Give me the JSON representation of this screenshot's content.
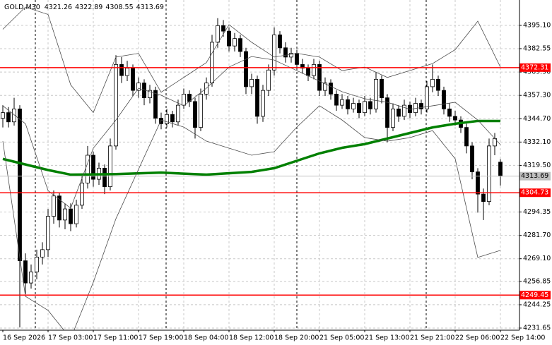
{
  "chart_data": {
    "type": "candlestick",
    "symbol": "GOLD,M30",
    "ylim": [
      4230.51,
      4408.82
    ],
    "yticks": [
      {
        "value": 4395.1,
        "label": "4395.10"
      },
      {
        "value": 4382.55,
        "label": "4382.55"
      },
      {
        "value": 4369.9,
        "label": "4369.90"
      },
      {
        "value": 4357.3,
        "label": "4357.30"
      },
      {
        "value": 4344.7,
        "label": "4344.70"
      },
      {
        "value": 4332.1,
        "label": "4332.10"
      },
      {
        "value": 4319.5,
        "label": "4319.50"
      },
      {
        "value": 4294.35,
        "label": "4294.35"
      },
      {
        "value": 4281.7,
        "label": "4281.70"
      },
      {
        "value": 4269.1,
        "label": "4269.10"
      },
      {
        "value": 4256.85,
        "label": "4256.85"
      },
      {
        "value": 4244.25,
        "label": "4244.25"
      },
      {
        "value": 4231.65,
        "label": "4231.65"
      }
    ],
    "grid": true,
    "bull_color": "#ffffff",
    "bear_color": "#000000",
    "categories": [
      "16 Sep 2026",
      null,
      null,
      null,
      null,
      null,
      null,
      null,
      "17 Sep 03:00",
      null,
      null,
      null,
      null,
      null,
      null,
      null,
      "17 Sep 11:00",
      null,
      null,
      null,
      null,
      null,
      null,
      null,
      "17 Sep 19:00",
      null,
      null,
      null,
      null,
      null,
      null,
      null,
      "18 Sep 04:00",
      null,
      null,
      null,
      null,
      null,
      null,
      null,
      "18 Sep 12:00",
      null,
      null,
      null,
      null,
      null,
      null,
      null,
      "18 Sep 20:00",
      null,
      null,
      null,
      null,
      null,
      null,
      null,
      "21 Sep 05:00",
      null,
      null,
      null,
      null,
      null,
      null,
      null,
      "21 Sep 13:00",
      null,
      null,
      null,
      null,
      null,
      null,
      null,
      "21 Sep 21:00",
      null,
      null,
      null,
      null,
      null,
      null,
      null,
      "22 Sep 06:00",
      null,
      null,
      null,
      null,
      null,
      null,
      null,
      "22 Sep 14:00"
    ],
    "candles": [
      [
        4345,
        4352,
        4340,
        4348
      ],
      [
        4348,
        4351,
        4340,
        4343
      ],
      [
        4343,
        4356,
        4341,
        4350
      ],
      [
        4350,
        4352,
        4232,
        4268
      ],
      [
        4268,
        4272,
        4250,
        4256
      ],
      [
        4256,
        4266,
        4253,
        4262
      ],
      [
        4262,
        4274,
        4258,
        4270
      ],
      [
        4270,
        4278,
        4266,
        4274
      ],
      [
        4274,
        4296,
        4270,
        4292
      ],
      [
        4292,
        4306,
        4288,
        4303
      ],
      [
        4303,
        4305,
        4286,
        4290
      ],
      [
        4290,
        4299,
        4285,
        4296
      ],
      [
        4296,
        4299,
        4284,
        4288
      ],
      [
        4288,
        4301,
        4286,
        4298
      ],
      [
        4298,
        4314,
        4296,
        4310
      ],
      [
        4310,
        4330,
        4307,
        4325
      ],
      [
        4325,
        4327,
        4308,
        4312
      ],
      [
        4312,
        4321,
        4309,
        4318
      ],
      [
        4318,
        4320,
        4304,
        4308
      ],
      [
        4308,
        4334,
        4306,
        4330
      ],
      [
        4330,
        4379,
        4328,
        4374
      ],
      [
        4374,
        4378,
        4364,
        4368
      ],
      [
        4368,
        4376,
        4365,
        4372
      ],
      [
        4372,
        4374,
        4357,
        4360
      ],
      [
        4360,
        4367,
        4356,
        4364
      ],
      [
        4364,
        4366,
        4352,
        4356
      ],
      [
        4356,
        4363,
        4353,
        4360
      ],
      [
        4360,
        4362,
        4342,
        4345
      ],
      [
        4345,
        4348,
        4339,
        4342
      ],
      [
        4342,
        4350,
        4340,
        4347
      ],
      [
        4347,
        4349,
        4340,
        4343
      ],
      [
        4343,
        4355,
        4341,
        4352
      ],
      [
        4352,
        4361,
        4350,
        4358
      ],
      [
        4358,
        4360,
        4351,
        4354
      ],
      [
        4354,
        4356,
        4334,
        4340
      ],
      [
        4340,
        4361,
        4338,
        4358
      ],
      [
        4358,
        4367,
        4355,
        4364
      ],
      [
        4364,
        4390,
        4362,
        4386
      ],
      [
        4386,
        4399,
        4383,
        4395
      ],
      [
        4395,
        4398,
        4389,
        4392
      ],
      [
        4392,
        4394,
        4381,
        4384
      ],
      [
        4384,
        4391,
        4381,
        4388
      ],
      [
        4388,
        4390,
        4378,
        4381
      ],
      [
        4381,
        4383,
        4358,
        4362
      ],
      [
        4362,
        4369,
        4358,
        4366
      ],
      [
        4366,
        4368,
        4342,
        4346
      ],
      [
        4346,
        4363,
        4343,
        4360
      ],
      [
        4360,
        4374,
        4357,
        4371
      ],
      [
        4371,
        4394,
        4368,
        4390
      ],
      [
        4390,
        4392,
        4380,
        4383
      ],
      [
        4383,
        4386,
        4375,
        4378
      ],
      [
        4378,
        4383,
        4375,
        4380
      ],
      [
        4380,
        4382,
        4371,
        4374
      ],
      [
        4374,
        4377,
        4369,
        4372
      ],
      [
        4372,
        4374,
        4365,
        4368
      ],
      [
        4368,
        4377,
        4366,
        4374
      ],
      [
        4374,
        4376,
        4357,
        4360
      ],
      [
        4360,
        4367,
        4357,
        4364
      ],
      [
        4364,
        4366,
        4355,
        4358
      ],
      [
        4358,
        4360,
        4349,
        4352
      ],
      [
        4352,
        4358,
        4350,
        4355
      ],
      [
        4355,
        4357,
        4347,
        4350
      ],
      [
        4350,
        4356,
        4348,
        4353
      ],
      [
        4353,
        4355,
        4345,
        4348
      ],
      [
        4348,
        4357,
        4346,
        4354
      ],
      [
        4354,
        4356,
        4347,
        4350
      ],
      [
        4350,
        4370,
        4348,
        4366
      ],
      [
        4366,
        4368,
        4353,
        4356
      ],
      [
        4356,
        4358,
        4332,
        4340
      ],
      [
        4340,
        4353,
        4338,
        4350
      ],
      [
        4350,
        4352,
        4343,
        4346
      ],
      [
        4346,
        4355,
        4344,
        4352
      ],
      [
        4352,
        4354,
        4345,
        4348
      ],
      [
        4348,
        4356,
        4346,
        4353
      ],
      [
        4353,
        4355,
        4347,
        4350
      ],
      [
        4350,
        4365,
        4348,
        4362
      ],
      [
        4362,
        4374,
        4359,
        4366
      ],
      [
        4366,
        4368,
        4357,
        4360
      ],
      [
        4360,
        4362,
        4347,
        4350
      ],
      [
        4350,
        4353,
        4343,
        4346
      ],
      [
        4346,
        4349,
        4341,
        4344
      ],
      [
        4344,
        4346,
        4337,
        4340
      ],
      [
        4340,
        4342,
        4326,
        4330
      ],
      [
        4330,
        4332,
        4312,
        4316
      ],
      [
        4316,
        4318,
        4294,
        4304
      ],
      [
        4304,
        4307,
        4290,
        4300
      ],
      [
        4300,
        4334,
        4298,
        4330
      ],
      [
        4330,
        4337,
        4325,
        4334
      ],
      [
        4321.26,
        4322.89,
        4308.55,
        4313.69
      ]
    ],
    "lines": [
      {
        "color": "#008000",
        "width": 3.5,
        "x": [
          0,
          8,
          12,
          20,
          28,
          36,
          44,
          48,
          52,
          56,
          60,
          64,
          68,
          72,
          76,
          80,
          84,
          88
        ],
        "values": [
          4323,
          4317,
          4314.5,
          4314.8,
          4315.6,
          4314.5,
          4316,
          4318,
          4322,
          4326,
          4329,
          4331,
          4334,
          4337,
          4340,
          4342,
          4343.5,
          4343.5
        ]
      },
      {
        "color": "#4d4d4d",
        "width": 0.8,
        "x": [
          0,
          4,
          8,
          12,
          16,
          20,
          24,
          28,
          32,
          36,
          40,
          44,
          48,
          52,
          56,
          60,
          64,
          68,
          72,
          76,
          80,
          84,
          88
        ],
        "values": [
          4393,
          4405,
          4401,
          4363,
          4348,
          4378,
          4380,
          4359,
          4367,
          4375,
          4395.5,
          4386,
          4378,
          4380,
          4378,
          4370.7,
          4372.6,
          4367,
          4370.7,
          4374.5,
          4382,
          4397.4,
          4372.6
        ]
      },
      {
        "color": "#4d4d4d",
        "width": 0.8,
        "x": [
          0,
          4,
          8,
          12,
          16,
          20,
          24,
          28,
          32,
          36,
          40,
          44,
          48,
          52,
          56,
          60,
          64,
          68,
          72,
          76,
          80,
          84,
          88
        ],
        "values": [
          4351.7,
          4342,
          4305.9,
          4296.4,
          4328.8,
          4344,
          4361.2,
          4357.4,
          4351.7,
          4361.2,
          4372.6,
          4378.3,
          4376.4,
          4370.7,
          4365,
          4359.3,
          4355.5,
          4353.6,
          4349.8,
          4351.7,
          4353.6,
          4344,
          4330.7
        ]
      },
      {
        "color": "#4d4d4d",
        "width": 0.8,
        "x": [
          0,
          4,
          8,
          12,
          16,
          20,
          24,
          28,
          32,
          36,
          40,
          44,
          48,
          52,
          56,
          60,
          64,
          68,
          72,
          76,
          80,
          84,
          88
        ],
        "values": [
          4332.6,
          4248.8,
          4241.2,
          4226,
          4256.4,
          4290.7,
          4317.4,
          4344,
          4340.2,
          4332.6,
          4328.8,
          4325,
          4326.9,
          4340.2,
          4351.7,
          4344,
          4334.5,
          4332.6,
          4334.5,
          4338.3,
          4323.1,
          4269.8,
          4273.6
        ]
      }
    ],
    "levels": [
      {
        "value": 4372.31,
        "color": "#ff0000"
      },
      {
        "value": 4304.73,
        "color": "#ff0000"
      },
      {
        "value": 4249.45,
        "color": "#ff0000"
      }
    ],
    "last_price_color": "#c0c0c0"
  }
}
